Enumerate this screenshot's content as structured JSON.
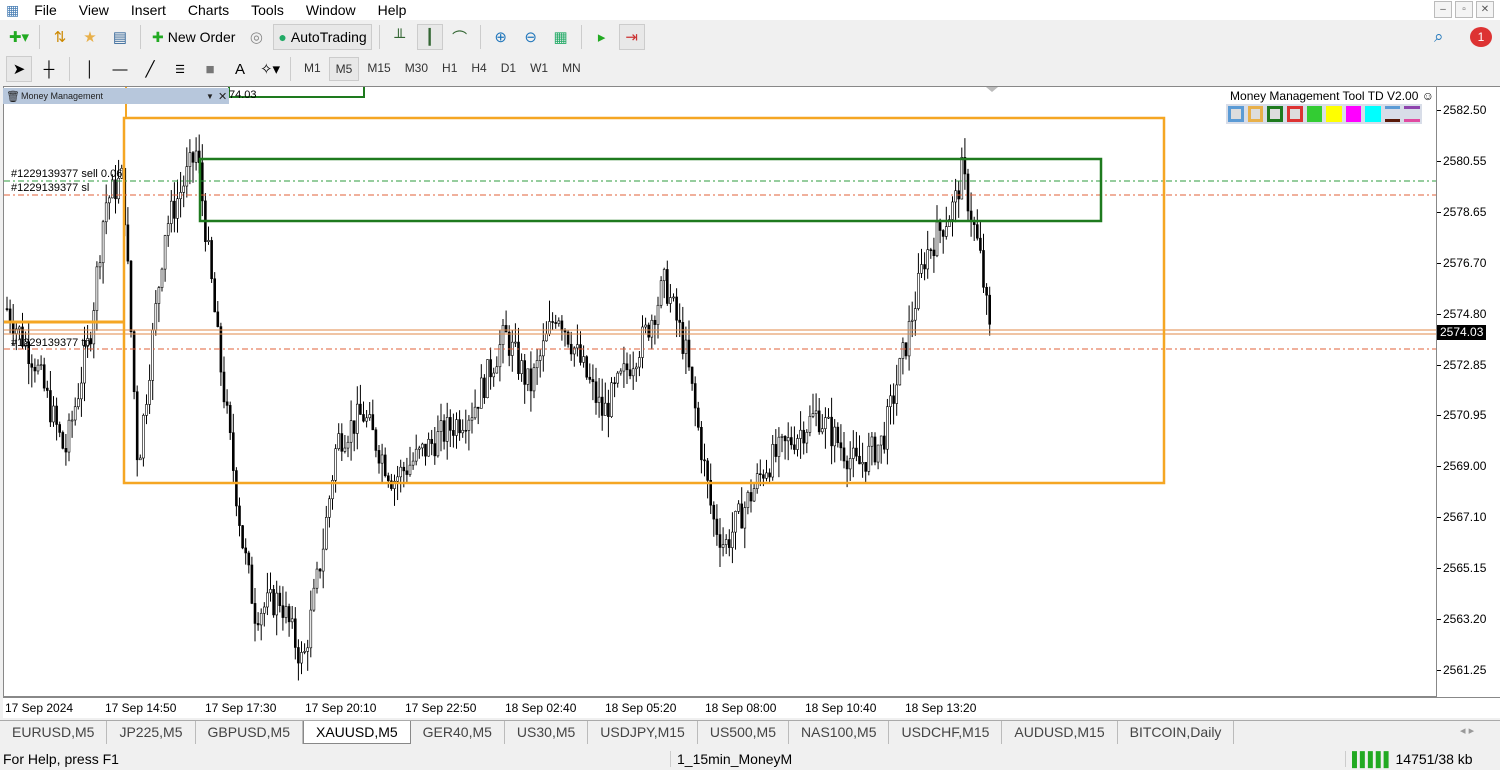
{
  "menu": [
    "File",
    "View",
    "Insert",
    "Charts",
    "Tools",
    "Window",
    "Help"
  ],
  "toolbar": {
    "new_order": "New Order",
    "autotrading": "AutoTrading"
  },
  "timeframes": [
    "M1",
    "M5",
    "M15",
    "M30",
    "H1",
    "H4",
    "D1",
    "W1",
    "MN"
  ],
  "active_timeframe": "M5",
  "notification_count": "1",
  "chart": {
    "panel_title": "Money Management",
    "partial_label": "74.03",
    "tool_title": "Money Management Tool TD V2.00",
    "tool_colors": [
      "#5b9bd5",
      "#e8b04a",
      "#1e7a1e",
      "#d33",
      "#33cc33",
      "#ffff00",
      "#ff00ff",
      "#00ffff"
    ],
    "order_labels": {
      "sell": "#1229139377 sell 0.06",
      "sl": "#1229139377 sl",
      "tp": "#1229139377 tp"
    },
    "current_price": "2574.03",
    "price_labels": [
      "2582.50",
      "2580.55",
      "2578.65",
      "2576.70",
      "2574.80",
      "2572.85",
      "2570.95",
      "2569.00",
      "2567.10",
      "2565.15",
      "2563.20",
      "2561.25"
    ],
    "time_labels": [
      "17 Sep 2024",
      "17 Sep 14:50",
      "17 Sep 17:30",
      "17 Sep 20:10",
      "17 Sep 22:50",
      "18 Sep 02:40",
      "18 Sep 05:20",
      "18 Sep 08:00",
      "18 Sep 10:40",
      "18 Sep 13:20"
    ],
    "colors": {
      "rect_orange": "#f5a623",
      "rect_green": "#1e7a1e",
      "sell_line": "#2e9b3e",
      "sl_line": "#e0603a",
      "bid_line": "#e08a4a"
    }
  },
  "tabs": [
    "EURUSD,M5",
    "JP225,M5",
    "GBPUSD,M5",
    "XAUUSD,M5",
    "GER40,M5",
    "US30,M5",
    "USDJPY,M15",
    "US500,M5",
    "NAS100,M5",
    "USDCHF,M15",
    "AUDUSD,M15",
    "BITCOIN,Daily"
  ],
  "active_tab": "XAUUSD,M5",
  "status": {
    "help": "For Help, press F1",
    "profile": "1_15min_MoneyM",
    "traffic": "14751/38 kb"
  }
}
